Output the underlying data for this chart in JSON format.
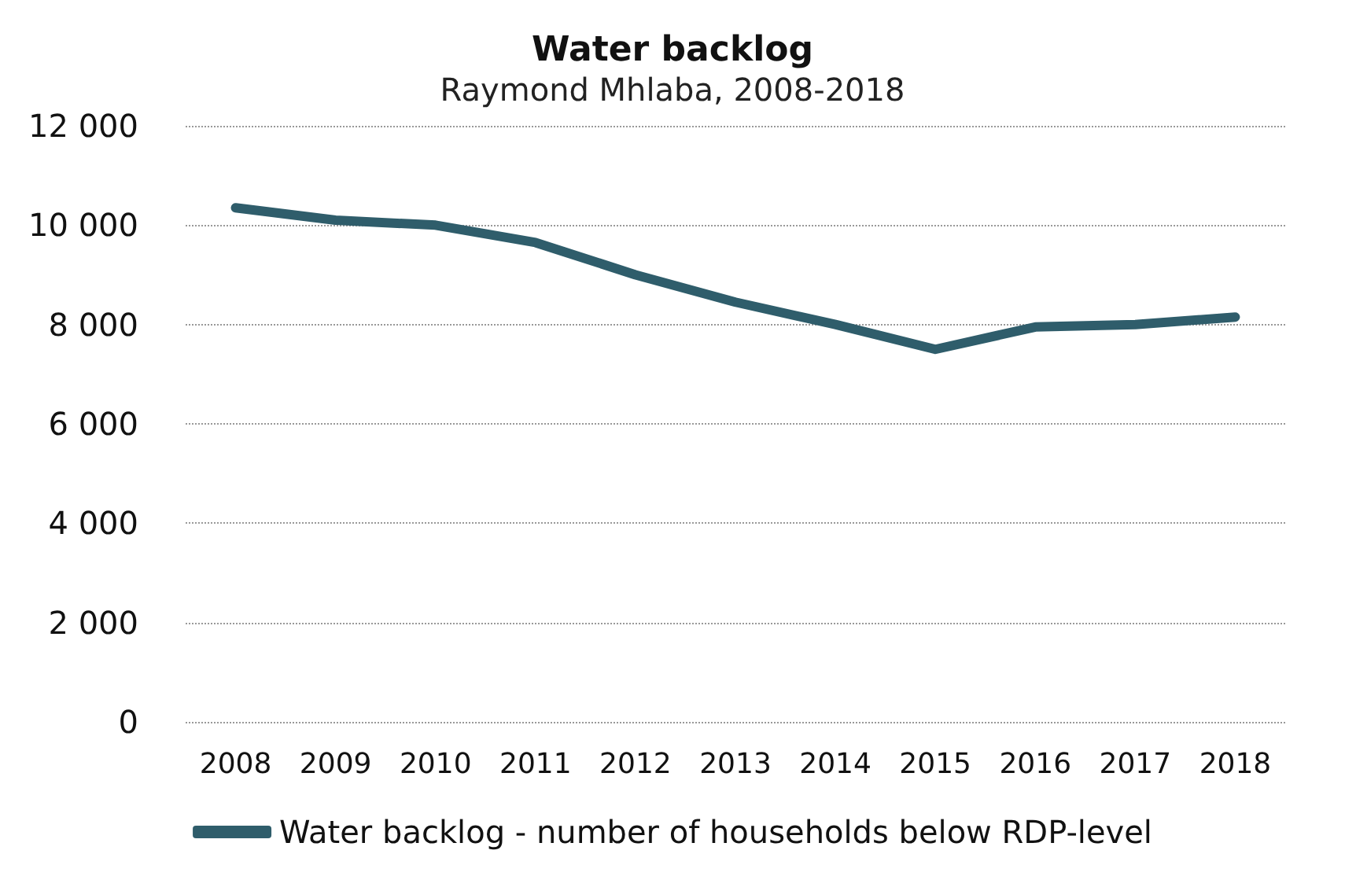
{
  "chart_data": {
    "type": "line",
    "title": "Water backlog",
    "subtitle": "Raymond Mhlaba, 2008-2018",
    "categories": [
      "2008",
      "2009",
      "2010",
      "2011",
      "2012",
      "2013",
      "2014",
      "2015",
      "2016",
      "2017",
      "2018"
    ],
    "series": [
      {
        "name": "Water backlog - number of households below RDP-level",
        "color": "#2f5d6b",
        "values": [
          10350,
          10100,
          10000,
          9650,
          9000,
          8450,
          8000,
          7500,
          7950,
          8000,
          8150
        ]
      }
    ],
    "ylim": [
      0,
      12000
    ],
    "yticks": [
      {
        "value": 0,
        "label": "0"
      },
      {
        "value": 2000,
        "label": "2 000"
      },
      {
        "value": 4000,
        "label": "4 000"
      },
      {
        "value": 6000,
        "label": "6 000"
      },
      {
        "value": 8000,
        "label": "8 000"
      },
      {
        "value": 10000,
        "label": "10 000"
      },
      {
        "value": 12000,
        "label": "12 000"
      }
    ],
    "grid": "y",
    "legend": "bottom",
    "marker": "none",
    "line_style": "solid"
  }
}
